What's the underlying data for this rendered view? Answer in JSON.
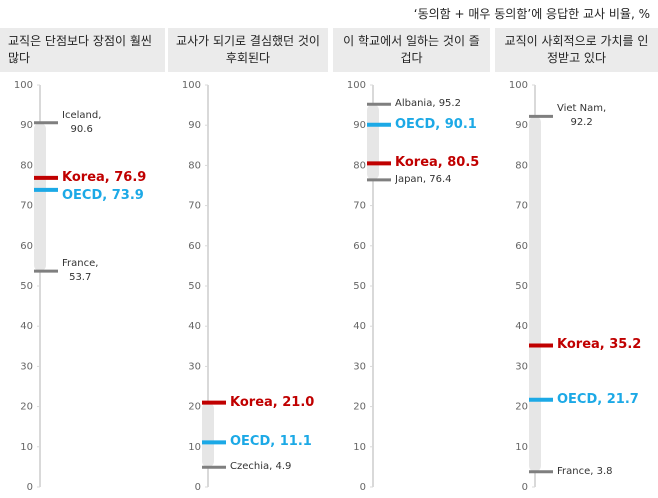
{
  "note": "‘동의함 + 매우 동의함’에 응답한 교사 비율, %",
  "chart_data": [
    {
      "type": "strip",
      "title": "교직은 단점보다 장점이 훨씬 많다",
      "ylim": [
        0,
        100
      ],
      "yticks": [
        0,
        10,
        20,
        30,
        40,
        50,
        60,
        70,
        80,
        90,
        100
      ],
      "series": [
        {
          "values": [
            90.6
          ],
          "value_labels": [
            "Iceland,\n90.6"
          ],
          "color": "#7f7f7f",
          "bold": false
        },
        {
          "values": [
            76.9
          ],
          "value_labels": [
            "Korea, 76.9"
          ],
          "color": "#c00000",
          "bold": true
        },
        {
          "values": [
            73.9
          ],
          "value_labels": [
            "OECD, 73.9"
          ],
          "color": "#1ca9e6",
          "bold": true
        },
        {
          "values": [
            53.7
          ],
          "value_labels": [
            "France,\n53.7"
          ],
          "color": "#7f7f7f",
          "bold": false
        }
      ]
    },
    {
      "type": "strip",
      "title": "교사가 되기로 결심했던 것이 후회된다",
      "ylim": [
        0,
        100
      ],
      "yticks": [
        0,
        10,
        20,
        30,
        40,
        50,
        60,
        70,
        80,
        90,
        100
      ],
      "series": [
        {
          "values": [
            21.0
          ],
          "value_labels": [
            "Korea, 21.0"
          ],
          "color": "#c00000",
          "bold": true
        },
        {
          "values": [
            11.1
          ],
          "value_labels": [
            "OECD, 11.1"
          ],
          "color": "#1ca9e6",
          "bold": true
        },
        {
          "values": [
            4.9
          ],
          "value_labels": [
            "Czechia, 4.9"
          ],
          "color": "#7f7f7f",
          "bold": false
        }
      ]
    },
    {
      "type": "strip",
      "title": "이 학교에서 일하는 것이 즐겁다",
      "ylim": [
        0,
        100
      ],
      "yticks": [
        0,
        10,
        20,
        30,
        40,
        50,
        60,
        70,
        80,
        90,
        100
      ],
      "series": [
        {
          "values": [
            95.2
          ],
          "value_labels": [
            "Albania, 95.2"
          ],
          "color": "#7f7f7f",
          "bold": false
        },
        {
          "values": [
            90.1
          ],
          "value_labels": [
            "OECD, 90.1"
          ],
          "color": "#1ca9e6",
          "bold": true
        },
        {
          "values": [
            80.5
          ],
          "value_labels": [
            "Korea, 80.5"
          ],
          "color": "#c00000",
          "bold": true
        },
        {
          "values": [
            76.4
          ],
          "value_labels": [
            "Japan, 76.4"
          ],
          "color": "#7f7f7f",
          "bold": false
        }
      ]
    },
    {
      "type": "strip",
      "title": "교직이 사회적으로 가치를 인정받고 있다",
      "ylim": [
        0,
        100
      ],
      "yticks": [
        0,
        10,
        20,
        30,
        40,
        50,
        60,
        70,
        80,
        90,
        100
      ],
      "series": [
        {
          "values": [
            92.2
          ],
          "value_labels": [
            "Viet Nam,\n92.2"
          ],
          "color": "#7f7f7f",
          "bold": false
        },
        {
          "values": [
            35.2
          ],
          "value_labels": [
            "Korea, 35.2"
          ],
          "color": "#c00000",
          "bold": true
        },
        {
          "values": [
            21.7
          ],
          "value_labels": [
            "OECD, 21.7"
          ],
          "color": "#1ca9e6",
          "bold": true
        },
        {
          "values": [
            3.8
          ],
          "value_labels": [
            "France, 3.8"
          ],
          "color": "#7f7f7f",
          "bold": false
        }
      ]
    }
  ]
}
